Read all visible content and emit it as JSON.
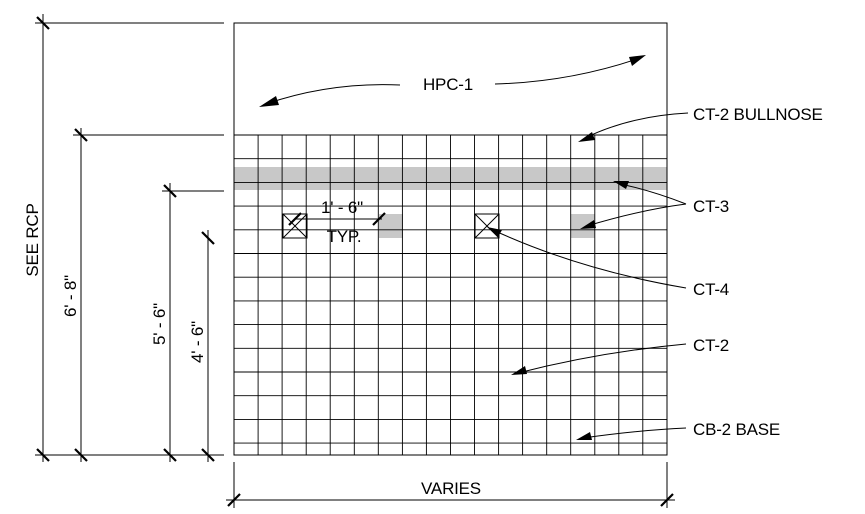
{
  "materials": {
    "hpc1": "HPC-1",
    "ct2_bullnose": "CT-2 BULLNOSE",
    "ct3": "CT-3",
    "ct4": "CT-4",
    "ct2": "CT-2",
    "cb2_base": "CB-2 BASE"
  },
  "dimensions": {
    "overall_height": "SEE RCP",
    "tile_height": "6' - 8\"",
    "band_height": "5' - 6\"",
    "accent_height": "4' - 6\"",
    "accent_spacing": "1' - 6\"",
    "accent_spacing_note": "TYP.",
    "width": "VARIES"
  },
  "colors": {
    "line": "#000000",
    "accent_fill": "#c8c8c8",
    "background": "#ffffff"
  }
}
